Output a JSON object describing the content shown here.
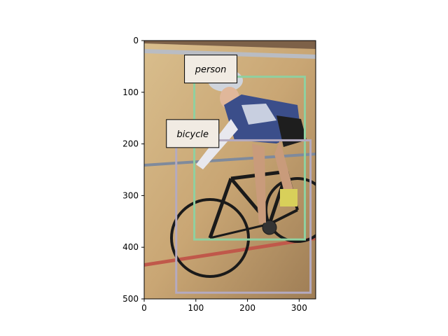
{
  "image": {
    "description_colors": {
      "floor_light": "#d2b483",
      "floor_dark": "#a8875d",
      "wall": "#8a6e52",
      "lane_red": "#c0584a",
      "lane_gray": "#b9bcc3"
    },
    "pixel_size": [
      332,
      500
    ]
  },
  "axes": {
    "xlim": [
      0,
      332
    ],
    "ylim": [
      500,
      0
    ],
    "x_ticks": [
      "0",
      "100",
      "200",
      "300"
    ],
    "y_ticks": [
      "0",
      "100",
      "200",
      "300",
      "400",
      "500"
    ]
  },
  "detections": [
    {
      "label": "person",
      "bbox_data": [
        97,
        70,
        311,
        385
      ],
      "color": "#8fd0a0",
      "label_anchor": [
        97,
        55
      ]
    },
    {
      "label": "bicycle",
      "bbox_data": [
        62,
        193,
        322,
        488
      ],
      "color": "#b4aac0",
      "label_anchor": [
        62,
        180
      ]
    }
  ]
}
